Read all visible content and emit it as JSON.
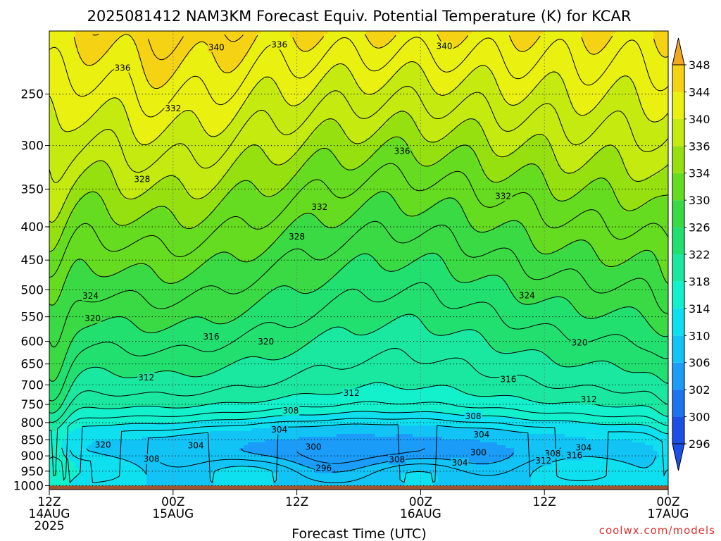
{
  "chart_data": {
    "type": "heatmap",
    "title": "2025081412 NAM3KM Forecast Equiv. Potential Temperature (K) for KCAR",
    "xlabel": "Forecast Time (UTC)",
    "ylabel": "",
    "credit": "coolwx.com/models",
    "x_ticks": [
      {
        "hour": 0,
        "line1": "12Z",
        "line2": "14AUG",
        "line3": "2025"
      },
      {
        "hour": 12,
        "line1": "00Z",
        "line2": "15AUG",
        "line3": ""
      },
      {
        "hour": 24,
        "line1": "12Z",
        "line2": "",
        "line3": ""
      },
      {
        "hour": 36,
        "line1": "00Z",
        "line2": "16AUG",
        "line3": ""
      },
      {
        "hour": 48,
        "line1": "12Z",
        "line2": "",
        "line3": ""
      },
      {
        "hour": 60,
        "line1": "00Z",
        "line2": "17AUG",
        "line3": ""
      }
    ],
    "xlim": [
      0,
      60
    ],
    "y_ticks": [
      250,
      300,
      350,
      400,
      450,
      500,
      550,
      600,
      650,
      700,
      750,
      800,
      850,
      900,
      950,
      1000
    ],
    "ylim": [
      200,
      1014
    ],
    "y_scale": "log",
    "y_reversed": true,
    "grid": true,
    "surface_pressure_hpa": 1000,
    "colorbar": {
      "levels": [
        296,
        300,
        302,
        306,
        310,
        314,
        318,
        322,
        326,
        330,
        334,
        336,
        340,
        344,
        348
      ],
      "labels": [
        "296",
        "300",
        "302",
        "306",
        "310",
        "314",
        "318",
        "322",
        "326",
        "330",
        "334",
        "336",
        "340",
        "344",
        "348"
      ],
      "colors": [
        "#1a50e8",
        "#1a74f0",
        "#1a9cf8",
        "#12c4f6",
        "#0fe0f0",
        "#12f0cc",
        "#1ae8a0",
        "#22e070",
        "#3ada44",
        "#66dc20",
        "#96e010",
        "#c4ea10",
        "#eaf010",
        "#f6d214",
        "#f2a81e"
      ]
    },
    "contour_labels": [
      {
        "text": "340",
        "hour": 16.2,
        "p": 212
      },
      {
        "text": "336",
        "hour": 22.3,
        "p": 210
      },
      {
        "text": "340",
        "hour": 38.3,
        "p": 211
      },
      {
        "text": "336",
        "hour": 7.1,
        "p": 228
      },
      {
        "text": "332",
        "hour": 12.0,
        "p": 263
      },
      {
        "text": "336",
        "hour": 34.2,
        "p": 306
      },
      {
        "text": "328",
        "hour": 9.0,
        "p": 338
      },
      {
        "text": "332",
        "hour": 26.2,
        "p": 373
      },
      {
        "text": "332",
        "hour": 44.0,
        "p": 359
      },
      {
        "text": "328",
        "hour": 24.0,
        "p": 414
      },
      {
        "text": "324",
        "hour": 4.0,
        "p": 511
      },
      {
        "text": "324",
        "hour": 46.3,
        "p": 510
      },
      {
        "text": "320",
        "hour": 4.2,
        "p": 553
      },
      {
        "text": "316",
        "hour": 15.7,
        "p": 590
      },
      {
        "text": "320",
        "hour": 21.0,
        "p": 601
      },
      {
        "text": "320",
        "hour": 51.4,
        "p": 603
      },
      {
        "text": "312",
        "hour": 9.4,
        "p": 682
      },
      {
        "text": "316",
        "hour": 44.5,
        "p": 686
      },
      {
        "text": "312",
        "hour": 29.3,
        "p": 721
      },
      {
        "text": "312",
        "hour": 52.3,
        "p": 737
      },
      {
        "text": "308",
        "hour": 23.4,
        "p": 767
      },
      {
        "text": "308",
        "hour": 41.1,
        "p": 782
      },
      {
        "text": "304",
        "hour": 22.3,
        "p": 820
      },
      {
        "text": "304",
        "hour": 41.9,
        "p": 835
      },
      {
        "text": "320",
        "hour": 5.2,
        "p": 866
      },
      {
        "text": "304",
        "hour": 14.2,
        "p": 868
      },
      {
        "text": "300",
        "hour": 25.6,
        "p": 872
      },
      {
        "text": "300",
        "hour": 41.6,
        "p": 890
      },
      {
        "text": "308",
        "hour": 48.8,
        "p": 893
      },
      {
        "text": "304",
        "hour": 51.8,
        "p": 874
      },
      {
        "text": "316",
        "hour": 50.9,
        "p": 899
      },
      {
        "text": "308",
        "hour": 9.9,
        "p": 910
      },
      {
        "text": "308",
        "hour": 33.7,
        "p": 912
      },
      {
        "text": "304",
        "hour": 39.8,
        "p": 922
      },
      {
        "text": "312",
        "hour": 47.9,
        "p": 915
      },
      {
        "text": "296",
        "hour": 26.6,
        "p": 940
      }
    ]
  }
}
